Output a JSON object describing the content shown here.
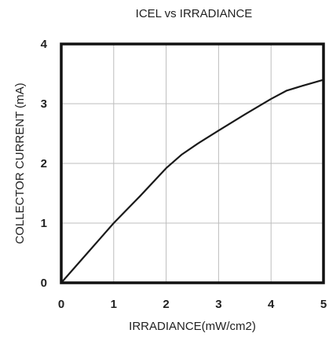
{
  "chart_data": {
    "type": "line",
    "title": "ICEL vs IRRADIANCE",
    "xlabel": "IRRADIANCE(mW/cm2)",
    "ylabel": "COLLECTOR CURRENT (mA)",
    "xlim": [
      0,
      5
    ],
    "ylim": [
      0,
      4
    ],
    "xticks": [
      "0",
      "1",
      "2",
      "3",
      "4",
      "5"
    ],
    "yticks": [
      "0",
      "1",
      "2",
      "3",
      "4"
    ],
    "grid": true,
    "series": [
      {
        "x": [
          0,
          0.5,
          1,
          1.5,
          2,
          2.3,
          2.6,
          3,
          3.5,
          4,
          4.3,
          4.6,
          5
        ],
        "y": [
          0,
          0.5,
          1.0,
          1.45,
          1.92,
          2.15,
          2.33,
          2.55,
          2.82,
          3.08,
          3.22,
          3.3,
          3.4
        ]
      }
    ],
    "colors": {
      "line": "#1a1a1a",
      "frame": "#111111",
      "grid": "#bdbdbd"
    }
  }
}
